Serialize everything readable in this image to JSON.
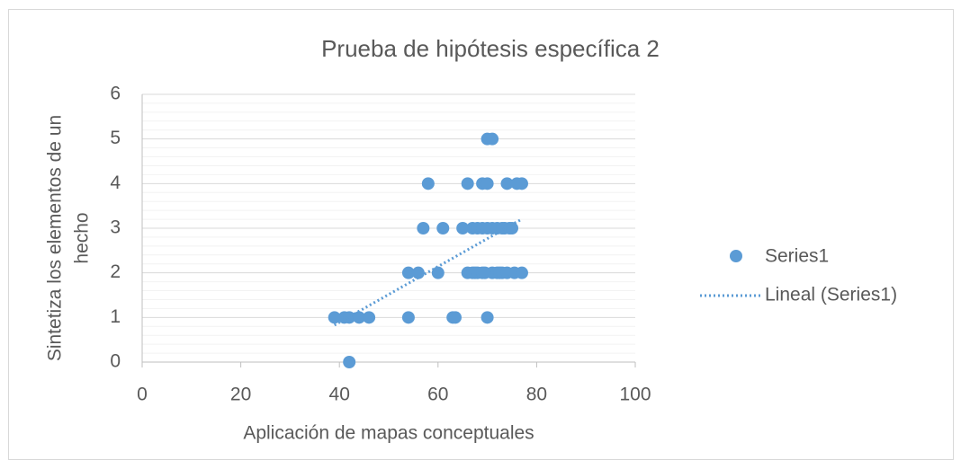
{
  "chart_data": {
    "type": "scatter",
    "title": "Prueba de hipótesis específica 2",
    "xlabel": "Aplicación de mapas conceptuales",
    "ylabel": [
      "Sintetiza los elementos de un",
      "hecho"
    ],
    "series": [
      {
        "name": "Series1",
        "color": "#5b9bd5",
        "x": [
          42,
          39,
          41,
          42,
          44,
          46,
          54,
          63,
          63.5,
          70,
          54,
          56,
          60,
          66,
          67,
          67.5,
          68,
          69,
          69.5,
          71,
          72,
          72.5,
          73,
          74,
          75.5,
          77,
          57,
          61,
          65,
          67,
          68,
          69,
          70,
          71,
          72,
          73,
          73.5,
          74.5,
          75,
          58,
          66,
          69,
          70,
          74,
          76,
          77,
          70,
          71
        ],
        "values": [
          0,
          1,
          1,
          1,
          1,
          1,
          1,
          1,
          1,
          1,
          2,
          2,
          2,
          2,
          2,
          2,
          2,
          2,
          2,
          2,
          2,
          2,
          2,
          2,
          2,
          2,
          3,
          3,
          3,
          3,
          3,
          3,
          3,
          3,
          3,
          3,
          3,
          3,
          3,
          4,
          4,
          4,
          4,
          4,
          4,
          4,
          5,
          5
        ]
      }
    ],
    "trendline": {
      "name": "Lineal (Series1)",
      "type": "linear",
      "color": "#5b9bd5"
    },
    "xlim": [
      0,
      100
    ],
    "xticks": [
      0,
      20,
      40,
      60,
      80,
      100
    ],
    "ylim": [
      0,
      6
    ],
    "yticks": [
      0,
      1,
      2,
      3,
      4,
      5,
      6
    ],
    "y_minor_ticks": [
      0.2,
      0.4,
      0.6,
      0.8,
      1.2,
      1.4,
      1.6,
      1.8,
      2.2,
      2.4,
      2.6,
      2.8,
      3.2,
      3.4,
      3.6,
      3.8,
      4.2,
      4.4,
      4.6,
      4.8,
      5.2,
      5.4,
      5.6,
      5.8
    ],
    "grid": true,
    "legend": "right"
  }
}
